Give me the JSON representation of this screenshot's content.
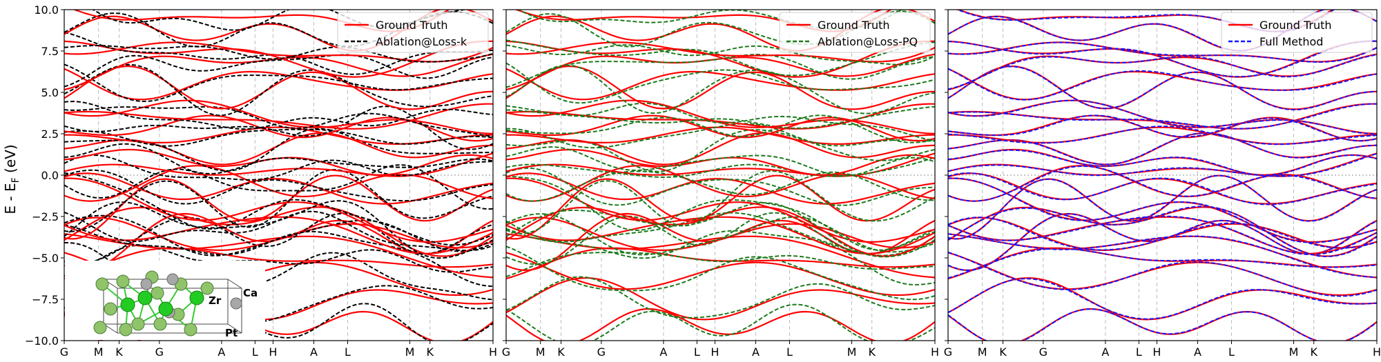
{
  "figure": {
    "ylabel_main": "E - E",
    "ylabel_sub": "F",
    "ylabel_tail": " (eV)"
  },
  "chart_data": {
    "type": "line",
    "ylim": [
      -10.0,
      10.0
    ],
    "yticks": [
      "10.0",
      "7.5",
      "5.0",
      "2.5",
      "0.0",
      "−2.5",
      "−5.0",
      "−7.5",
      "−10.0"
    ],
    "ytick_values": [
      10.0,
      7.5,
      5.0,
      2.5,
      0.0,
      -2.5,
      -5.0,
      -7.5,
      -10.0
    ],
    "kpath_labels": [
      "G",
      "M",
      "K",
      "G",
      "A",
      "L",
      "H",
      "A",
      "L",
      "M",
      "K",
      "H"
    ],
    "kpath_positions": [
      0.0,
      0.08,
      0.128,
      0.222,
      0.367,
      0.445,
      0.487,
      0.582,
      0.661,
      0.806,
      0.853,
      1.0
    ],
    "grid": "vertical dashed at k-points; horizontal dotted at 0",
    "legend_position": "top-right",
    "panels": [
      {
        "legend": [
          {
            "name": "Ground Truth",
            "color": "#ff0000",
            "style": "solid"
          },
          {
            "name": "Ablation@Loss-k",
            "color": "#000000",
            "style": "dashed"
          }
        ],
        "has_inset": true
      },
      {
        "legend": [
          {
            "name": "Ground Truth",
            "color": "#ff0000",
            "style": "solid"
          },
          {
            "name": "Ablation@Loss-PQ",
            "color": "#1a7a1a",
            "style": "dashed"
          }
        ],
        "has_inset": false
      },
      {
        "legend": [
          {
            "name": "Ground Truth",
            "color": "#ff0000",
            "style": "solid"
          },
          {
            "name": "Full Method",
            "color": "#1414ff",
            "style": "dashed"
          }
        ],
        "has_inset": false
      }
    ],
    "band_centers_ev": [
      -9.0,
      -7.6,
      -5.8,
      -5.2,
      -4.6,
      -4.1,
      -3.7,
      -3.3,
      -2.8,
      -2.2,
      -1.6,
      -0.9,
      -0.4,
      0.4,
      1.0,
      1.6,
      2.3,
      2.9,
      3.4,
      4.1,
      4.9,
      5.6,
      6.4,
      7.2,
      8.0,
      8.9,
      9.6
    ],
    "inset": {
      "atoms": [
        {
          "label": "Ca",
          "color": "#a8a8a8"
        },
        {
          "label": "Zr",
          "color": "#22cc22"
        },
        {
          "label": "Pt",
          "color": "#8fc46a"
        }
      ]
    }
  }
}
